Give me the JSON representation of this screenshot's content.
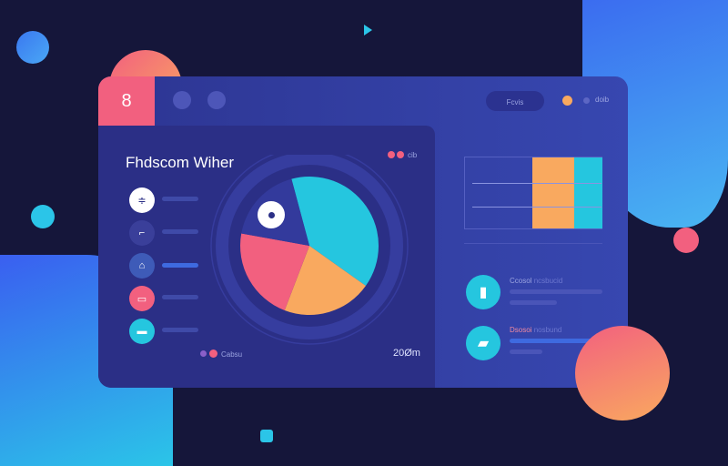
{
  "header": {
    "logo_glyph": "8",
    "search_label": "Fcvis",
    "user_label": "doib"
  },
  "card": {
    "title": "Fhdscom Wiher",
    "legend_top": "cib",
    "legend_bottom": "Cabsu",
    "footer_value": "20Øm"
  },
  "list": {
    "items": [
      {
        "icon": "tool-icon"
      },
      {
        "icon": "pin-icon"
      },
      {
        "icon": "home-icon"
      },
      {
        "icon": "chat-icon"
      },
      {
        "icon": "truck-icon"
      }
    ]
  },
  "right": {
    "items": [
      {
        "title": "Ccosol",
        "subtitle": "ncsbucid",
        "icon": "document-icon"
      },
      {
        "title": "Dsosoi",
        "subtitle": "nosbund",
        "icon": "map-icon"
      }
    ]
  },
  "chart_data": {
    "type": "pie",
    "slices": [
      {
        "color": "#25c6df",
        "value": 39
      },
      {
        "color": "#f9a95f",
        "value": 21
      },
      {
        "color": "#f2607f",
        "value": 22
      },
      {
        "color": "#333a9c",
        "value": 18
      }
    ]
  },
  "colors": {
    "accent_pink": "#f2607f",
    "accent_teal": "#25c6df",
    "accent_orange": "#f9a95f"
  }
}
